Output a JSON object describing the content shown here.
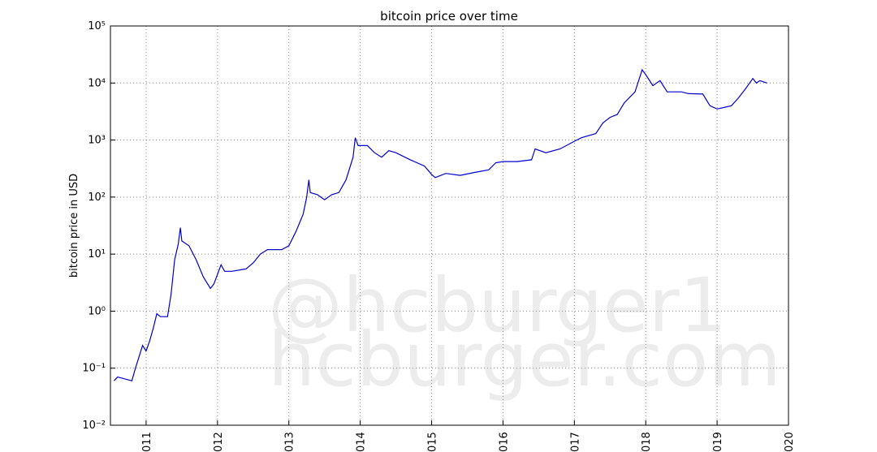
{
  "chart_data": {
    "type": "line",
    "title": "bitcoin price over time",
    "y_label": "bitcoin price in USD",
    "annotations": [
      "@hcburger1",
      "hcburger.com"
    ],
    "log_y": true,
    "grid": true,
    "xlim": [
      2010.5,
      2020
    ],
    "xticks": [
      {
        "value": 2011,
        "label": "011"
      },
      {
        "value": 2012,
        "label": "012"
      },
      {
        "value": 2013,
        "label": "013"
      },
      {
        "value": 2014,
        "label": "014"
      },
      {
        "value": 2015,
        "label": "015"
      },
      {
        "value": 2016,
        "label": "016"
      },
      {
        "value": 2017,
        "label": "017"
      },
      {
        "value": 2018,
        "label": "018"
      },
      {
        "value": 2019,
        "label": "019"
      },
      {
        "value": 2020,
        "label": "020"
      }
    ],
    "ylim": [
      0.01,
      100000
    ],
    "yticks": [
      {
        "value": 0.01,
        "label": "10⁻²"
      },
      {
        "value": 0.1,
        "label": "10⁻¹"
      },
      {
        "value": 1,
        "label": "10⁰"
      },
      {
        "value": 10,
        "label": "10¹"
      },
      {
        "value": 100,
        "label": "10²"
      },
      {
        "value": 1000,
        "label": "10³"
      },
      {
        "value": 10000,
        "label": "10⁴"
      },
      {
        "value": 100000,
        "label": "10⁵"
      }
    ],
    "x": [
      2010.55,
      2010.6,
      2010.8,
      2010.85,
      2010.95,
      2011.0,
      2011.05,
      2011.1,
      2011.15,
      2011.2,
      2011.3,
      2011.35,
      2011.4,
      2011.45,
      2011.48,
      2011.5,
      2011.6,
      2011.7,
      2011.8,
      2011.9,
      2011.95,
      2012.05,
      2012.1,
      2012.2,
      2012.4,
      2012.5,
      2012.6,
      2012.7,
      2012.9,
      2013.0,
      2013.1,
      2013.2,
      2013.25,
      2013.28,
      2013.3,
      2013.4,
      2013.5,
      2013.6,
      2013.7,
      2013.8,
      2013.9,
      2013.93,
      2013.97,
      2014.1,
      2014.2,
      2014.3,
      2014.4,
      2014.5,
      2014.7,
      2014.9,
      2015.0,
      2015.05,
      2015.2,
      2015.4,
      2015.6,
      2015.8,
      2015.9,
      2016.0,
      2016.2,
      2016.4,
      2016.45,
      2016.6,
      2016.8,
      2017.0,
      2017.1,
      2017.3,
      2017.4,
      2017.5,
      2017.6,
      2017.7,
      2017.85,
      2017.95,
      2018.0,
      2018.1,
      2018.2,
      2018.3,
      2018.5,
      2018.6,
      2018.8,
      2018.9,
      2019.0,
      2019.2,
      2019.3,
      2019.4,
      2019.5,
      2019.55,
      2019.6,
      2019.7
    ],
    "series": [
      {
        "name": "bitcoin price",
        "color": "#0000cc",
        "values": [
          0.06,
          0.07,
          0.06,
          0.1,
          0.25,
          0.2,
          0.3,
          0.5,
          0.9,
          0.8,
          0.8,
          2,
          8,
          15,
          29,
          17,
          14,
          8,
          4,
          2.5,
          3,
          6.5,
          5,
          5,
          5.5,
          7,
          10,
          12,
          12,
          14,
          25,
          50,
          100,
          200,
          120,
          110,
          90,
          110,
          120,
          200,
          500,
          1100,
          800,
          800,
          600,
          500,
          650,
          600,
          450,
          350,
          250,
          220,
          260,
          240,
          270,
          300,
          400,
          420,
          420,
          450,
          700,
          600,
          700,
          950,
          1100,
          1300,
          2000,
          2500,
          2800,
          4500,
          7000,
          17000,
          14000,
          9000,
          11000,
          7000,
          7000,
          6500,
          6400,
          4000,
          3500,
          4000,
          5500,
          8000,
          12000,
          10000,
          11000,
          10000
        ]
      }
    ]
  }
}
